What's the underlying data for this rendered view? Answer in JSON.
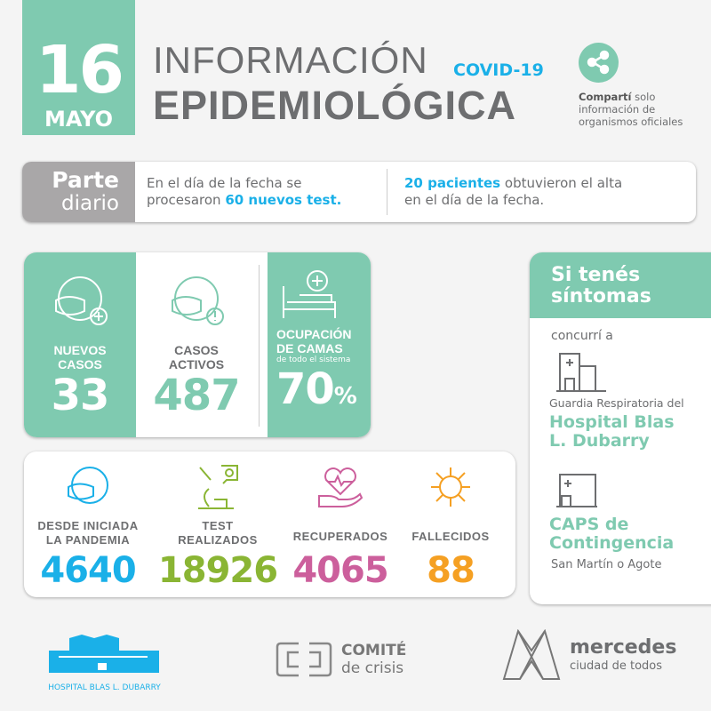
{
  "header": {
    "day": "16",
    "month": "MAYO",
    "title_line1": "INFORMACIÓN",
    "covid": "COVID-19",
    "title_line2": "EPIDEMIOLÓGICA",
    "share_bold": "Compartí",
    "share_rest": " solo",
    "share_line2": "información de",
    "share_line3": "organismos oficiales"
  },
  "parte": {
    "label1": "Parte",
    "label2": "diario",
    "left_line1": "En el día de la fecha se",
    "left_pre": "procesaron ",
    "left_bold": "60 nuevos test.",
    "right_bold": "20 pacientes",
    "right_rest": " obtuvieron el alta",
    "right_line2": "en el día de la fecha."
  },
  "stats_top": [
    {
      "label1": "NUEVOS",
      "label2": "CASOS",
      "value": "33"
    },
    {
      "label1": "CASOS",
      "label2": "ACTIVOS",
      "value": "487"
    },
    {
      "label1": "OCUPACIÓN",
      "label2": "DE CAMAS",
      "sub": "de todo el sistema",
      "value": "70",
      "unit": "%"
    }
  ],
  "stats_bottom": [
    {
      "label1": "DESDE INICIADA",
      "label2": "LA PANDEMIA",
      "value": "4640",
      "color": "#1ab0e8"
    },
    {
      "label1": "TEST",
      "label2": "REALIZADOS",
      "value": "18926",
      "color": "#8ab534"
    },
    {
      "label1": "",
      "label2": "RECUPERADOS",
      "value": "4065",
      "color": "#cc5f9c"
    },
    {
      "label1": "",
      "label2": "FALLECIDOS",
      "value": "88",
      "color": "#f5a023"
    }
  ],
  "side": {
    "title1": "Si tenés",
    "title2": "síntomas",
    "go": "concurrí a",
    "guardia": "Guardia Respiratoria del",
    "hosp1": "Hospital Blas",
    "hosp2": "L. Dubarry",
    "caps1": "CAPS de",
    "caps2": "Contingencia",
    "caps_addr": "San Martín o Agote"
  },
  "footer": {
    "hospital": "HOSPITAL BLAS L. DUBARRY",
    "comite1": "COMITÉ",
    "comite2": "de crisis",
    "mercedes1": "mercedes",
    "mercedes2": "ciudad de todos"
  },
  "colors": {
    "teal": "#7fcab0",
    "gray": "#6d6e70",
    "cyan": "#1ab0e8"
  }
}
